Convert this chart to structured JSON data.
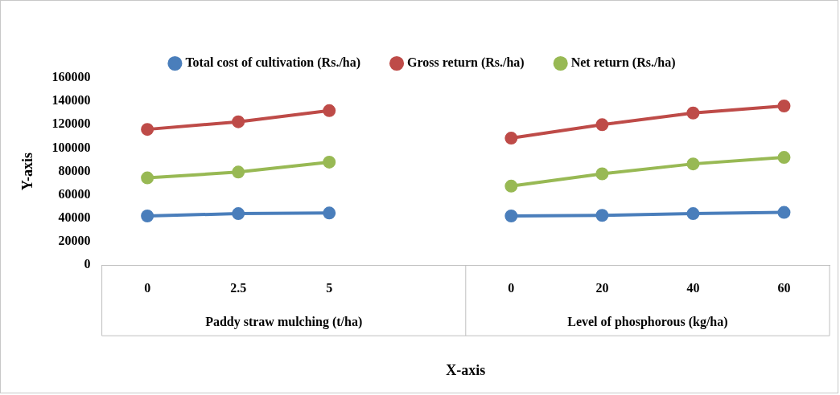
{
  "chart_data": {
    "type": "line",
    "xlabel": "X-axis",
    "ylabel": "Y-axis",
    "categories": [
      "0",
      "2.5",
      "5",
      null,
      "0",
      "20",
      "40",
      "60"
    ],
    "series": [
      {
        "name": "Total cost of cultivation (Rs./ha)",
        "color": "#4a7ebb",
        "values": [
          42000,
          44000,
          44500,
          null,
          42000,
          42500,
          44000,
          45000
        ]
      },
      {
        "name": "Gross return (Rs./ha)",
        "color": "#be4b48",
        "values": [
          116000,
          122500,
          132000,
          null,
          108500,
          120000,
          130000,
          136000
        ]
      },
      {
        "name": "Net return (Rs./ha)",
        "color": "#98b954",
        "values": [
          74500,
          79500,
          88000,
          null,
          67500,
          78000,
          86500,
          92000
        ]
      }
    ],
    "ylim": [
      0,
      160000
    ],
    "yticks": [
      0,
      20000,
      40000,
      60000,
      80000,
      100000,
      120000,
      140000,
      160000
    ],
    "annotations": [
      "Paddy straw mulching (t/ha)",
      "Level of phosphorous (kg/ha)"
    ],
    "grid": false,
    "legend": "top",
    "marker": "circle",
    "line_style": "solid"
  }
}
